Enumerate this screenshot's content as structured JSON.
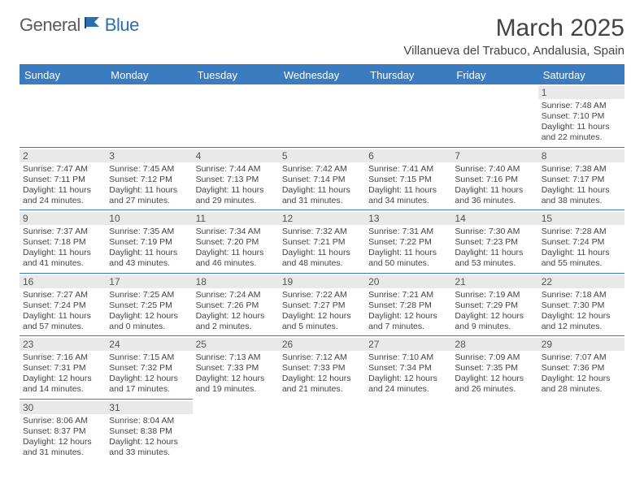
{
  "brand": {
    "part1": "General",
    "part2": "Blue"
  },
  "title": "March 2025",
  "location": "Villanueva del Trabuco, Andalusia, Spain",
  "colors": {
    "header_bg": "#3b7bbf",
    "daynum_bg": "#e9e9e9",
    "text": "#444444",
    "brand_blue": "#2b6fb0",
    "brand_gray": "#5a5a5a"
  },
  "weekdays": [
    "Sunday",
    "Monday",
    "Tuesday",
    "Wednesday",
    "Thursday",
    "Friday",
    "Saturday"
  ],
  "weeks": [
    [
      null,
      null,
      null,
      null,
      null,
      null,
      {
        "n": "1",
        "sr": "7:48 AM",
        "ss": "7:10 PM",
        "dl": "11 hours and 22 minutes."
      }
    ],
    [
      {
        "n": "2",
        "sr": "7:47 AM",
        "ss": "7:11 PM",
        "dl": "11 hours and 24 minutes."
      },
      {
        "n": "3",
        "sr": "7:45 AM",
        "ss": "7:12 PM",
        "dl": "11 hours and 27 minutes."
      },
      {
        "n": "4",
        "sr": "7:44 AM",
        "ss": "7:13 PM",
        "dl": "11 hours and 29 minutes."
      },
      {
        "n": "5",
        "sr": "7:42 AM",
        "ss": "7:14 PM",
        "dl": "11 hours and 31 minutes."
      },
      {
        "n": "6",
        "sr": "7:41 AM",
        "ss": "7:15 PM",
        "dl": "11 hours and 34 minutes."
      },
      {
        "n": "7",
        "sr": "7:40 AM",
        "ss": "7:16 PM",
        "dl": "11 hours and 36 minutes."
      },
      {
        "n": "8",
        "sr": "7:38 AM",
        "ss": "7:17 PM",
        "dl": "11 hours and 38 minutes."
      }
    ],
    [
      {
        "n": "9",
        "sr": "7:37 AM",
        "ss": "7:18 PM",
        "dl": "11 hours and 41 minutes."
      },
      {
        "n": "10",
        "sr": "7:35 AM",
        "ss": "7:19 PM",
        "dl": "11 hours and 43 minutes."
      },
      {
        "n": "11",
        "sr": "7:34 AM",
        "ss": "7:20 PM",
        "dl": "11 hours and 46 minutes."
      },
      {
        "n": "12",
        "sr": "7:32 AM",
        "ss": "7:21 PM",
        "dl": "11 hours and 48 minutes."
      },
      {
        "n": "13",
        "sr": "7:31 AM",
        "ss": "7:22 PM",
        "dl": "11 hours and 50 minutes."
      },
      {
        "n": "14",
        "sr": "7:30 AM",
        "ss": "7:23 PM",
        "dl": "11 hours and 53 minutes."
      },
      {
        "n": "15",
        "sr": "7:28 AM",
        "ss": "7:24 PM",
        "dl": "11 hours and 55 minutes."
      }
    ],
    [
      {
        "n": "16",
        "sr": "7:27 AM",
        "ss": "7:24 PM",
        "dl": "11 hours and 57 minutes."
      },
      {
        "n": "17",
        "sr": "7:25 AM",
        "ss": "7:25 PM",
        "dl": "12 hours and 0 minutes."
      },
      {
        "n": "18",
        "sr": "7:24 AM",
        "ss": "7:26 PM",
        "dl": "12 hours and 2 minutes."
      },
      {
        "n": "19",
        "sr": "7:22 AM",
        "ss": "7:27 PM",
        "dl": "12 hours and 5 minutes."
      },
      {
        "n": "20",
        "sr": "7:21 AM",
        "ss": "7:28 PM",
        "dl": "12 hours and 7 minutes."
      },
      {
        "n": "21",
        "sr": "7:19 AM",
        "ss": "7:29 PM",
        "dl": "12 hours and 9 minutes."
      },
      {
        "n": "22",
        "sr": "7:18 AM",
        "ss": "7:30 PM",
        "dl": "12 hours and 12 minutes."
      }
    ],
    [
      {
        "n": "23",
        "sr": "7:16 AM",
        "ss": "7:31 PM",
        "dl": "12 hours and 14 minutes."
      },
      {
        "n": "24",
        "sr": "7:15 AM",
        "ss": "7:32 PM",
        "dl": "12 hours and 17 minutes."
      },
      {
        "n": "25",
        "sr": "7:13 AM",
        "ss": "7:33 PM",
        "dl": "12 hours and 19 minutes."
      },
      {
        "n": "26",
        "sr": "7:12 AM",
        "ss": "7:33 PM",
        "dl": "12 hours and 21 minutes."
      },
      {
        "n": "27",
        "sr": "7:10 AM",
        "ss": "7:34 PM",
        "dl": "12 hours and 24 minutes."
      },
      {
        "n": "28",
        "sr": "7:09 AM",
        "ss": "7:35 PM",
        "dl": "12 hours and 26 minutes."
      },
      {
        "n": "29",
        "sr": "7:07 AM",
        "ss": "7:36 PM",
        "dl": "12 hours and 28 minutes."
      }
    ],
    [
      {
        "n": "30",
        "sr": "8:06 AM",
        "ss": "8:37 PM",
        "dl": "12 hours and 31 minutes."
      },
      {
        "n": "31",
        "sr": "8:04 AM",
        "ss": "8:38 PM",
        "dl": "12 hours and 33 minutes."
      },
      null,
      null,
      null,
      null,
      null
    ]
  ],
  "labels": {
    "sunrise": "Sunrise:",
    "sunset": "Sunset:",
    "daylight": "Daylight:"
  }
}
